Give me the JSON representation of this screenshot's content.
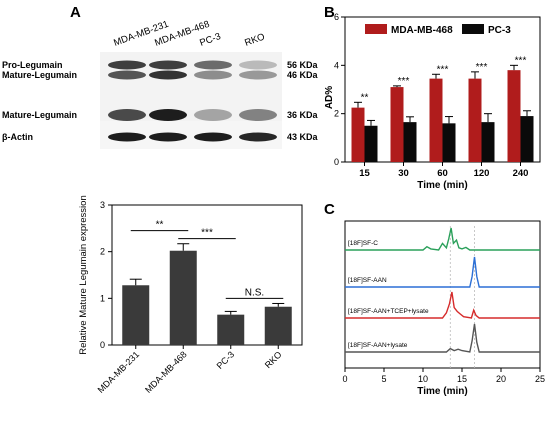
{
  "panel_a": {
    "letter": "A",
    "blot": {
      "lanes": [
        "MDA-MB-231",
        "MDA-MB-468",
        "PC-3",
        "RKO"
      ],
      "row_labels": [
        "Pro-Legumain",
        "Mature-Legumain",
        "Mature-Legumain",
        "β-Actin"
      ],
      "mw_labels": [
        "56 KDa",
        "46 KDa",
        "36 KDa",
        "43 KDa"
      ]
    }
  },
  "panel_b": {
    "letter": "B"
  },
  "panel_c": {
    "letter": "C"
  },
  "chart_data": [
    {
      "id": "blot-quant",
      "type": "bar",
      "ylabel": "Relative Mature Legumain expression",
      "xlabel": "",
      "categories": [
        "MDA-MB-231",
        "MDA-MB-468",
        "PC-3",
        "RKO"
      ],
      "values": [
        1.28,
        2.02,
        0.65,
        0.82
      ],
      "errors": [
        0.13,
        0.15,
        0.07,
        0.07
      ],
      "ylim": [
        0,
        3
      ],
      "yticks": [
        0,
        1,
        2,
        3
      ],
      "bar_color": "#3a3a3a",
      "significance": [
        {
          "from": 0,
          "to": 1,
          "label": "**"
        },
        {
          "from": 1,
          "to": 2,
          "label": "***"
        },
        {
          "from": 2,
          "to": 3,
          "label": "N.S."
        }
      ],
      "grid": false
    },
    {
      "id": "uptake",
      "type": "bar",
      "xlabel": "Time (min)",
      "ylabel": "AD%",
      "categories": [
        "15",
        "30",
        "60",
        "120",
        "240"
      ],
      "series": [
        {
          "name": "MDA-MB-468",
          "values": [
            2.25,
            3.1,
            3.45,
            3.45,
            3.8
          ],
          "errors": [
            0.22,
            0.05,
            0.18,
            0.28,
            0.2
          ],
          "color": "#b01c1c"
        },
        {
          "name": "PC-3",
          "values": [
            1.5,
            1.65,
            1.6,
            1.65,
            1.9
          ],
          "errors": [
            0.22,
            0.22,
            0.28,
            0.35,
            0.22
          ],
          "color": "#0a0a0a"
        }
      ],
      "significance": [
        "**",
        "***",
        "***",
        "***",
        "***"
      ],
      "ylim": [
        0,
        6
      ],
      "yticks": [
        0,
        2,
        4,
        6
      ],
      "legend": "top",
      "grid": false
    },
    {
      "id": "radio-hplc",
      "type": "line",
      "xlabel": "Time (min)",
      "xlim": [
        0,
        25
      ],
      "xticks": [
        0,
        5,
        10,
        15,
        20,
        25
      ],
      "series": [
        {
          "name": "[18F]SF-C",
          "color": "#2aa05a",
          "x": [
            0,
            10,
            10.5,
            11,
            12,
            12.5,
            13,
            13.3,
            13.6,
            13.9,
            14.3,
            14.6,
            15,
            15.5,
            16,
            17,
            25
          ],
          "y": [
            0,
            0,
            0.15,
            0.05,
            0,
            0.3,
            0.1,
            0.5,
            1.0,
            0.3,
            0.45,
            0.1,
            0.05,
            0.12,
            0,
            0,
            0
          ]
        },
        {
          "name": "[18F]SF-AAN",
          "color": "#2b6fd6",
          "x": [
            0,
            16.0,
            16.3,
            16.6,
            16.9,
            17.2,
            25
          ],
          "y": [
            0,
            0,
            0.35,
            1.0,
            0.35,
            0,
            0
          ]
        },
        {
          "name": "[18F]SF-AAN+TCEP+lysate",
          "color": "#d62b2b",
          "x": [
            0,
            12.5,
            13.0,
            13.4,
            13.7,
            14.0,
            14.4,
            14.8,
            15.2,
            16.2,
            16.5,
            16.8,
            17.2,
            18,
            25
          ],
          "y": [
            0,
            0,
            0.2,
            0.55,
            1.0,
            0.4,
            0.25,
            0.15,
            0.05,
            0,
            0.3,
            0.1,
            0,
            0,
            0
          ]
        },
        {
          "name": "[18F]SF-AAN+lysate",
          "color": "#555555",
          "x": [
            0,
            13.0,
            13.5,
            14.0,
            14.5,
            15.0,
            16.0,
            16.3,
            16.6,
            16.9,
            17.2,
            25
          ],
          "y": [
            0,
            0,
            0.12,
            0.05,
            0.1,
            0.05,
            0,
            0.4,
            1.0,
            0.35,
            0,
            0
          ]
        }
      ],
      "annotations": [
        "[18F]SF-C",
        "[18F]SF-AAN",
        "[18F]SF-AAN+TCEP+lysate",
        "[18F]SF-AAN+lysate"
      ],
      "grid": false
    }
  ]
}
